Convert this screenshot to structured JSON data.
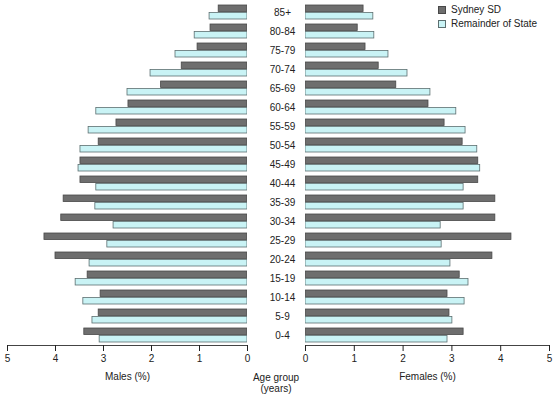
{
  "chart_data": [
    {
      "type": "bar",
      "orientation": "horizontal",
      "x_label": "Males (%)",
      "y_label": "Age group (years)",
      "categories": [
        "85+",
        "80-84",
        "75-79",
        "70-74",
        "65-69",
        "60-64",
        "55-59",
        "50-54",
        "45-49",
        "40-44",
        "35-39",
        "30-34",
        "25-29",
        "20-24",
        "15-19",
        "10-14",
        "5-9",
        "0-4"
      ],
      "series": [
        {
          "name": "Sydney SD",
          "color": "#6e6e6e",
          "values": [
            0.6,
            0.77,
            1.04,
            1.37,
            1.8,
            2.48,
            2.73,
            3.1,
            3.48,
            3.48,
            3.83,
            3.88,
            4.23,
            4.0,
            3.33,
            3.06,
            3.1,
            3.4
          ]
        },
        {
          "name": "Remainder of State",
          "color": "#c9f3f5",
          "values": [
            0.79,
            1.1,
            1.5,
            2.02,
            2.5,
            3.15,
            3.31,
            3.48,
            3.52,
            3.15,
            3.17,
            2.79,
            2.92,
            3.29,
            3.58,
            3.42,
            3.23,
            3.08
          ]
        }
      ],
      "xlim": [
        5,
        0
      ],
      "xticks": [
        5,
        4,
        3,
        2,
        1,
        0
      ]
    },
    {
      "type": "bar",
      "orientation": "horizontal",
      "x_label": "Females (%)",
      "legend": "top-right",
      "categories": [
        "85+",
        "80-84",
        "75-79",
        "70-74",
        "65-69",
        "60-64",
        "55-59",
        "50-54",
        "45-49",
        "40-44",
        "35-39",
        "30-34",
        "25-29",
        "20-24",
        "15-19",
        "10-14",
        "5-9",
        "0-4"
      ],
      "series": [
        {
          "name": "Sydney SD",
          "color": "#6e6e6e",
          "values": [
            1.19,
            1.07,
            1.23,
            1.5,
            1.86,
            2.52,
            2.85,
            3.22,
            3.54,
            3.54,
            3.89,
            3.89,
            4.22,
            3.83,
            3.16,
            2.91,
            2.95,
            3.24
          ]
        },
        {
          "name": "Remainder of State",
          "color": "#c9f3f5",
          "values": [
            1.39,
            1.41,
            1.7,
            2.09,
            2.56,
            3.09,
            3.28,
            3.52,
            3.58,
            3.24,
            3.24,
            2.77,
            2.79,
            2.97,
            3.34,
            3.26,
            3.01,
            2.91
          ]
        }
      ],
      "xlim": [
        0,
        5
      ],
      "xticks": [
        0,
        1,
        2,
        3,
        4,
        5
      ]
    }
  ]
}
